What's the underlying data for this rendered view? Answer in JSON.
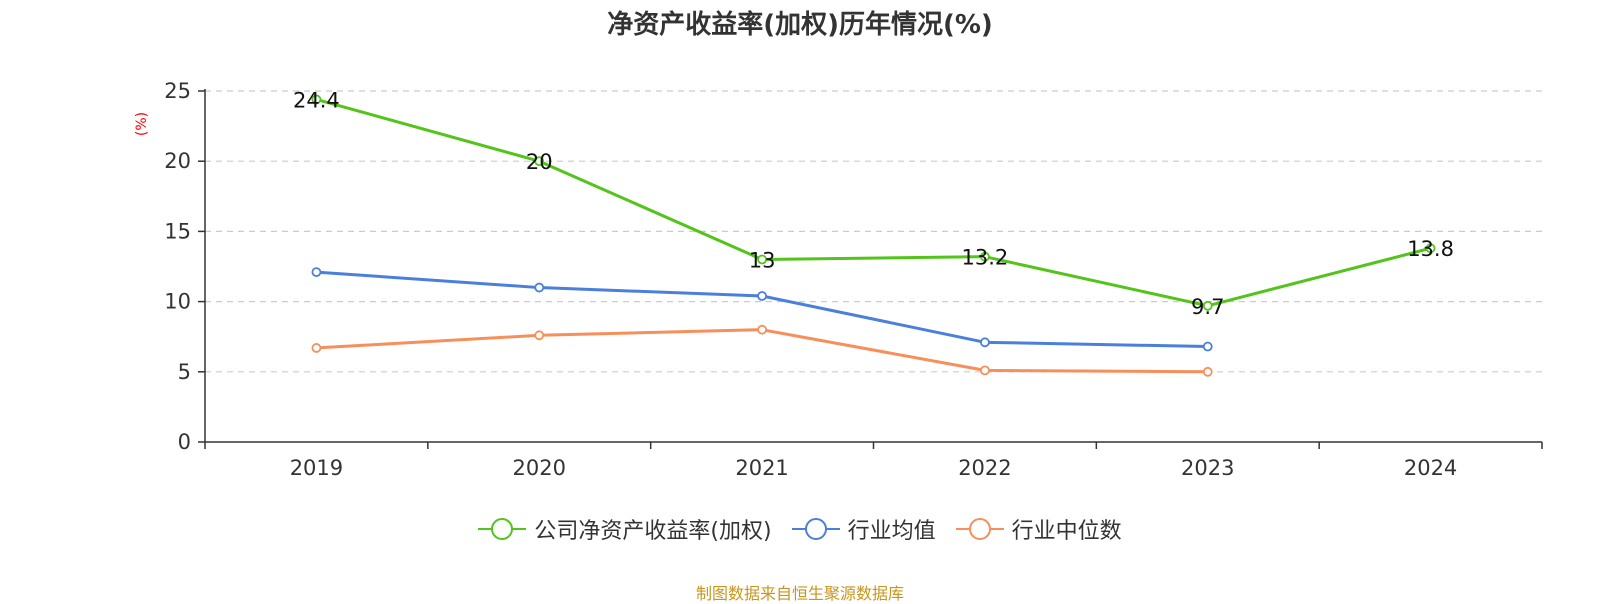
{
  "chart_data": {
    "type": "line",
    "title": "净资产收益率(加权)历年情况(%)",
    "ylabel": "(%)",
    "xlabel": "",
    "categories": [
      "2019",
      "2020",
      "2021",
      "2022",
      "2023",
      "2024"
    ],
    "ylim": [
      0,
      25
    ],
    "yticks": [
      0,
      5,
      10,
      15,
      20,
      25
    ],
    "grid": true,
    "legend_position": "bottom",
    "series": [
      {
        "name": "公司净资产收益率(加权)",
        "color": "#52c41a",
        "values": [
          24.4,
          20,
          13,
          13.2,
          9.7,
          13.8
        ],
        "labels": [
          "24.4",
          "20",
          "13",
          "13.2",
          "9.7",
          "13.8"
        ]
      },
      {
        "name": "行业均值",
        "color": "#4a7fdc",
        "values": [
          12.1,
          11.0,
          10.4,
          7.1,
          6.8,
          null
        ]
      },
      {
        "name": "行业中位数",
        "color": "#f78f5a",
        "values": [
          6.7,
          7.6,
          8.0,
          5.1,
          5.0,
          null
        ]
      }
    ]
  },
  "ylabel_color": "#ff0000",
  "source": {
    "text": "制图数据来自恒生聚源数据库",
    "color": "#c8961e"
  }
}
